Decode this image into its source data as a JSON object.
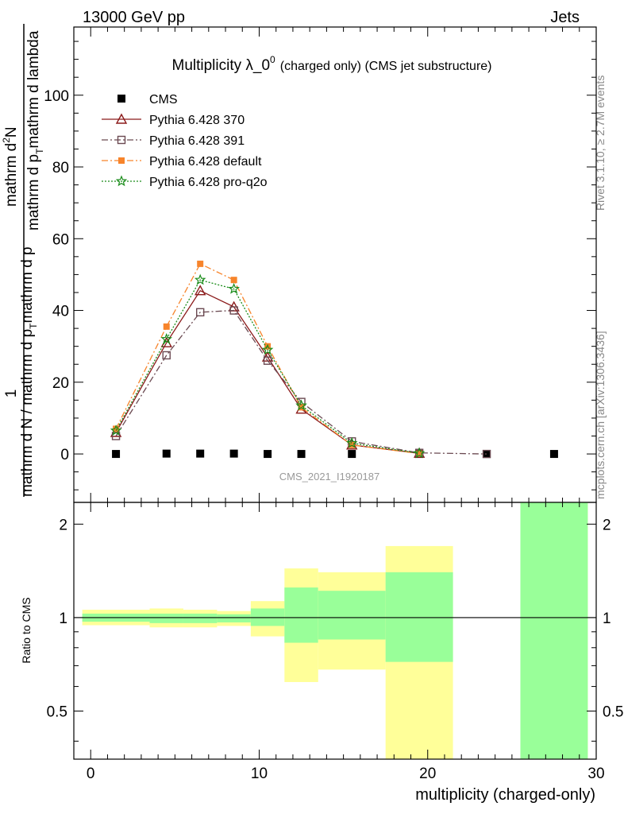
{
  "header": {
    "left": "13000 GeV pp",
    "right": "Jets"
  },
  "side": {
    "rivet": "Rivet 3.1.10, ≥ 2.7M events",
    "mcplots": "mcplots.cern.ch [arXiv:1306.3436]"
  },
  "chart_data": [
    {
      "type": "line",
      "title_main": "Multiplicity λ_0",
      "title_sup": "0",
      "title_rest": "(charged only) (CMS jet substructure)",
      "ylabel_top": "1",
      "ylabel_bottom": "mathrm d N / mathrm d p",
      "ylabel_bottom_sub": "T",
      "ylabel_bottom_rest": "mathrm d p",
      "ylabel_numerator": "mathrm d",
      "ylabel_numerator_sup": "2",
      "ylabel_numerator_rest": "N",
      "ylabel_denominator": "mathrm d p",
      "ylabel_denominator_sub": "T",
      "ylabel_denominator_rest": "mathrm d lambda",
      "watermark": "CMS_2021_I1920187",
      "xlim": [
        -1,
        30
      ],
      "ylim": [
        -13.5,
        119
      ],
      "yticks": [
        0,
        20,
        40,
        60,
        80,
        100
      ],
      "grid": false,
      "legend_position": "top-left",
      "series": [
        {
          "name": "CMS",
          "color": "#000000",
          "marker": "square",
          "x": [
            1.5,
            4.5,
            6.5,
            8.5,
            10.5,
            12.5,
            15.5,
            19.5,
            23.5,
            27.5
          ],
          "y": [
            0,
            0.1,
            0.1,
            0.1,
            0,
            0,
            0,
            0,
            0,
            0
          ]
        },
        {
          "name": "Pythia 6.428 370",
          "color": "#8b1a1a",
          "marker": "triangle",
          "dash": "solid",
          "x": [
            1.5,
            4.5,
            6.5,
            8.5,
            10.5,
            12.5,
            15.5,
            19.5
          ],
          "y": [
            6.0,
            31.0,
            45.5,
            41.0,
            27.0,
            12.5,
            2.5,
            0.2
          ]
        },
        {
          "name": "Pythia 6.428 391",
          "color": "#6b4a52",
          "marker": "open-square",
          "dash": "dashdot",
          "x": [
            1.5,
            4.5,
            6.5,
            8.5,
            10.5,
            12.5,
            15.5,
            19.5,
            23.5
          ],
          "y": [
            5.0,
            27.5,
            39.5,
            40.0,
            26.0,
            14.5,
            3.5,
            0.3,
            0.0
          ]
        },
        {
          "name": "Pythia 6.428 default",
          "color": "#f7842b",
          "marker": "filled-square",
          "dash": "dashdot",
          "x": [
            1.5,
            4.5,
            6.5,
            8.5,
            10.5,
            12.5,
            15.5,
            19.5
          ],
          "y": [
            7.0,
            35.5,
            53.0,
            48.5,
            30.0,
            13.0,
            2.5,
            0.1
          ]
        },
        {
          "name": "Pythia 6.428 pro-q2o",
          "color": "#1a8c1a",
          "marker": "star",
          "dash": "dotted",
          "x": [
            1.5,
            4.5,
            6.5,
            8.5,
            10.5,
            12.5,
            15.5,
            19.5
          ],
          "y": [
            6.5,
            32.0,
            48.5,
            46.0,
            29.0,
            13.5,
            3.0,
            0.2
          ]
        }
      ]
    },
    {
      "type": "area",
      "ylabel": "Ratio to CMS",
      "xlabel": "multiplicity (charged-only)",
      "xlim": [
        -1,
        30
      ],
      "ylim": [
        0.35,
        2.35
      ],
      "xticks": [
        0,
        10,
        20,
        30
      ],
      "yticks": [
        0.5,
        1,
        2
      ],
      "yscale": "log",
      "reference_line": 1,
      "bins": [
        {
          "x0": -0.5,
          "x1": 3.5,
          "inner": [
            0.97,
            1.03
          ],
          "outer": [
            0.945,
            1.06
          ]
        },
        {
          "x0": 3.5,
          "x1": 5.5,
          "inner": [
            0.96,
            1.03
          ],
          "outer": [
            0.93,
            1.07
          ]
        },
        {
          "x0": 5.5,
          "x1": 7.5,
          "inner": [
            0.96,
            1.03
          ],
          "outer": [
            0.93,
            1.06
          ]
        },
        {
          "x0": 7.5,
          "x1": 9.5,
          "inner": [
            0.965,
            1.025
          ],
          "outer": [
            0.94,
            1.05
          ]
        },
        {
          "x0": 9.5,
          "x1": 11.5,
          "inner": [
            0.94,
            1.07
          ],
          "outer": [
            0.87,
            1.13
          ]
        },
        {
          "x0": 11.5,
          "x1": 13.5,
          "inner": [
            0.83,
            1.25
          ],
          "outer": [
            0.62,
            1.44
          ]
        },
        {
          "x0": 13.5,
          "x1": 17.5,
          "inner": [
            0.85,
            1.22
          ],
          "outer": [
            0.68,
            1.4
          ]
        },
        {
          "x0": 17.5,
          "x1": 21.5,
          "inner": [
            0.72,
            1.4
          ],
          "outer": [
            0.35,
            1.7
          ]
        },
        {
          "x0": 25.5,
          "x1": 29.5,
          "inner": [
            0.35,
            2.35
          ],
          "outer": [
            0.35,
            2.35
          ]
        }
      ],
      "colors": {
        "inner": "#99ff99",
        "outer": "#ffff99"
      }
    }
  ]
}
